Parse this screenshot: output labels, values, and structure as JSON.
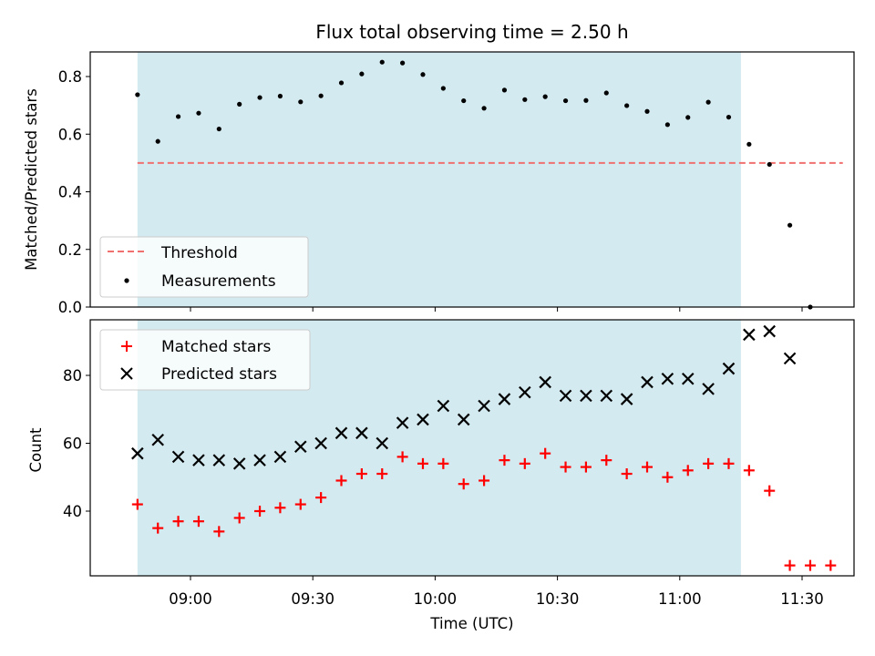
{
  "chart_data": [
    {
      "type": "scatter",
      "title": "Flux total observing time = 2.50 h",
      "xlabel": "",
      "ylabel": "Matched/Predicted stars",
      "ylim": [
        0,
        0.9
      ],
      "yticks": [
        "0.0",
        "0.2",
        "0.4",
        "0.6",
        "0.8"
      ],
      "shaded_span": {
        "start": "08:47",
        "end": "11:15",
        "color": "#d3eaf0"
      },
      "threshold": {
        "name": "Threshold",
        "value": 0.5,
        "color": "#f07070",
        "x_start": "08:47",
        "x_end": "11:40"
      },
      "legend_position": "lower-left",
      "series": [
        {
          "name": "Measurements",
          "marker": "dot",
          "color": "#000000",
          "x": [
            "08:47",
            "08:52",
            "08:57",
            "09:02",
            "09:07",
            "09:12",
            "09:17",
            "09:22",
            "09:27",
            "09:32",
            "09:37",
            "09:42",
            "09:47",
            "09:52",
            "09:57",
            "10:02",
            "10:07",
            "10:12",
            "10:17",
            "10:22",
            "10:27",
            "10:32",
            "10:37",
            "10:42",
            "10:47",
            "10:52",
            "10:57",
            "11:02",
            "11:07",
            "11:12",
            "11:17",
            "11:22",
            "11:27",
            "11:32"
          ],
          "y": [
            0.737,
            0.575,
            0.661,
            0.673,
            0.618,
            0.704,
            0.727,
            0.732,
            0.712,
            0.733,
            0.778,
            0.809,
            0.85,
            0.847,
            0.807,
            0.759,
            0.716,
            0.69,
            0.753,
            0.72,
            0.73,
            0.716,
            0.717,
            0.743,
            0.699,
            0.679,
            0.633,
            0.658,
            0.711,
            0.659,
            0.565,
            0.495,
            0.284,
            0.0
          ]
        }
      ]
    },
    {
      "type": "scatter",
      "xlabel": "Time (UTC)",
      "ylabel": "Count",
      "ylim": [
        21,
        95
      ],
      "yticks": [
        "40",
        "60",
        "80"
      ],
      "xticks": [
        "09:00",
        "09:30",
        "10:00",
        "10:30",
        "11:00",
        "11:30"
      ],
      "xlim": [
        "08:38",
        "11:41"
      ],
      "legend_position": "upper-left",
      "series": [
        {
          "name": "Matched stars",
          "marker": "plus",
          "color": "#ff0000",
          "x": [
            "08:47",
            "08:52",
            "08:57",
            "09:02",
            "09:07",
            "09:12",
            "09:17",
            "09:22",
            "09:27",
            "09:32",
            "09:37",
            "09:42",
            "09:47",
            "09:52",
            "09:57",
            "10:02",
            "10:07",
            "10:12",
            "10:17",
            "10:22",
            "10:27",
            "10:32",
            "10:37",
            "10:42",
            "10:47",
            "10:52",
            "10:57",
            "11:02",
            "11:07",
            "11:12",
            "11:17",
            "11:22",
            "11:27",
            "11:32",
            "11:37"
          ],
          "y": [
            42,
            35,
            37,
            37,
            34,
            38,
            40,
            41,
            42,
            44,
            49,
            51,
            51,
            56,
            54,
            54,
            48,
            49,
            55,
            54,
            57,
            53,
            53,
            55,
            51,
            53,
            50,
            52,
            54,
            54,
            52,
            46,
            24,
            24,
            24
          ]
        },
        {
          "name": "Predicted stars",
          "marker": "x",
          "color": "#000000",
          "x": [
            "08:47",
            "08:52",
            "08:57",
            "09:02",
            "09:07",
            "09:12",
            "09:17",
            "09:22",
            "09:27",
            "09:32",
            "09:37",
            "09:42",
            "09:47",
            "09:52",
            "09:57",
            "10:02",
            "10:07",
            "10:12",
            "10:17",
            "10:22",
            "10:27",
            "10:32",
            "10:37",
            "10:42",
            "10:47",
            "10:52",
            "10:57",
            "11:02",
            "11:07",
            "11:12",
            "11:17",
            "11:22",
            "11:27"
          ],
          "y": [
            57,
            61,
            56,
            55,
            55,
            54,
            55,
            56,
            59,
            60,
            63,
            63,
            60,
            66,
            67,
            71,
            67,
            71,
            73,
            75,
            78,
            74,
            74,
            74,
            73,
            78,
            79,
            79,
            76,
            82,
            92,
            93,
            85
          ]
        }
      ]
    }
  ]
}
